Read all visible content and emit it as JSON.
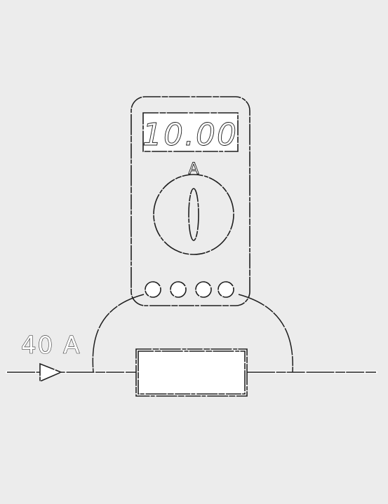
{
  "current_label": "40 A",
  "meter": {
    "display_reading": "10.00",
    "unit_label": "A"
  }
}
